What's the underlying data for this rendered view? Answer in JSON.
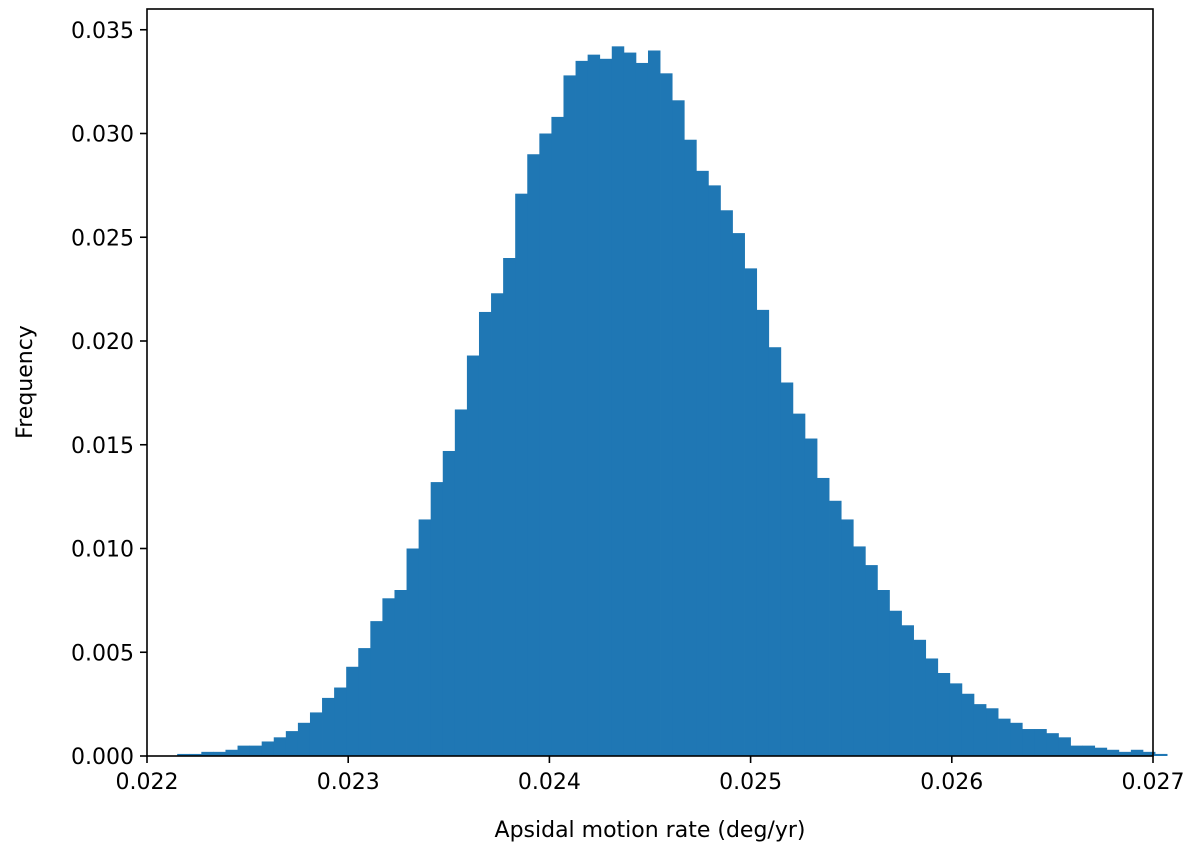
{
  "chart_data": {
    "type": "bar",
    "subtype": "histogram",
    "title": "",
    "xlabel": "Apsidal motion rate (deg/yr)",
    "ylabel": "Frequency",
    "xlim": [
      0.022,
      0.027
    ],
    "ylim": [
      0.0,
      0.036
    ],
    "x_ticks": [
      0.022,
      0.023,
      0.024,
      0.025,
      0.026,
      0.027
    ],
    "x_tick_labels": [
      "0.022",
      "0.023",
      "0.024",
      "0.025",
      "0.026",
      "0.027"
    ],
    "y_ticks": [
      0.0,
      0.005,
      0.01,
      0.015,
      0.02,
      0.025,
      0.03,
      0.035
    ],
    "y_tick_labels": [
      "0.000",
      "0.005",
      "0.010",
      "0.015",
      "0.020",
      "0.025",
      "0.030",
      "0.035"
    ],
    "bar_color": "#1f77b4",
    "grid": false,
    "legend": "none",
    "bin_start": 0.02215,
    "bin_width": 6e-05,
    "values": [
      0.0001,
      0.0001,
      0.0002,
      0.0002,
      0.0003,
      0.0005,
      0.0005,
      0.0007,
      0.0009,
      0.0012,
      0.0016,
      0.0021,
      0.0028,
      0.0033,
      0.0043,
      0.0052,
      0.0065,
      0.0076,
      0.008,
      0.01,
      0.0114,
      0.0132,
      0.0147,
      0.0167,
      0.0193,
      0.0214,
      0.0223,
      0.024,
      0.0271,
      0.029,
      0.03,
      0.0308,
      0.0328,
      0.0335,
      0.0338,
      0.0336,
      0.0342,
      0.0339,
      0.0334,
      0.034,
      0.0329,
      0.0316,
      0.0297,
      0.0282,
      0.0275,
      0.0263,
      0.0252,
      0.0235,
      0.0215,
      0.0197,
      0.018,
      0.0165,
      0.0153,
      0.0134,
      0.0123,
      0.0114,
      0.0101,
      0.0092,
      0.008,
      0.007,
      0.0063,
      0.0056,
      0.0047,
      0.004,
      0.0035,
      0.003,
      0.0025,
      0.0023,
      0.0018,
      0.0016,
      0.0013,
      0.0013,
      0.0011,
      0.0009,
      0.0005,
      0.0005,
      0.0004,
      0.0003,
      0.0002,
      0.0003,
      0.0002,
      0.0001
    ]
  }
}
